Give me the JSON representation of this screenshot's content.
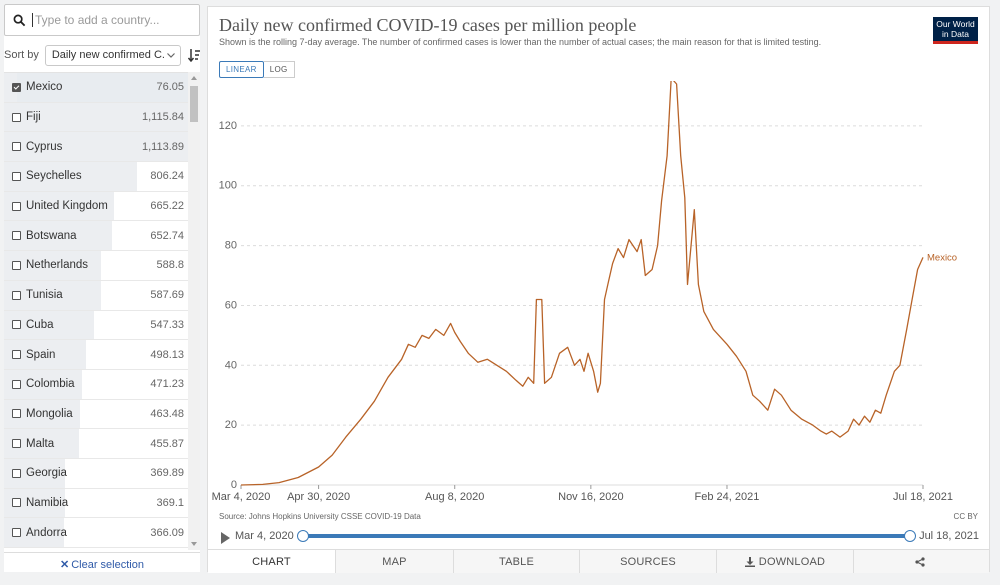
{
  "sidebar": {
    "search_placeholder": "Type to add a country...",
    "sort_label": "Sort by",
    "sort_value": "Daily new confirmed C...",
    "clear_selection": "Clear selection",
    "countries": [
      {
        "name": "Mexico",
        "value": "76.05",
        "num": 76.05,
        "selected": true
      },
      {
        "name": "Fiji",
        "value": "1,115.84",
        "num": 1115.84,
        "selected": false
      },
      {
        "name": "Cyprus",
        "value": "1,113.89",
        "num": 1113.89,
        "selected": false
      },
      {
        "name": "Seychelles",
        "value": "806.24",
        "num": 806.24,
        "selected": false
      },
      {
        "name": "United Kingdom",
        "value": "665.22",
        "num": 665.22,
        "selected": false
      },
      {
        "name": "Botswana",
        "value": "652.74",
        "num": 652.74,
        "selected": false
      },
      {
        "name": "Netherlands",
        "value": "588.8",
        "num": 588.8,
        "selected": false
      },
      {
        "name": "Tunisia",
        "value": "587.69",
        "num": 587.69,
        "selected": false
      },
      {
        "name": "Cuba",
        "value": "547.33",
        "num": 547.33,
        "selected": false
      },
      {
        "name": "Spain",
        "value": "498.13",
        "num": 498.13,
        "selected": false
      },
      {
        "name": "Colombia",
        "value": "471.23",
        "num": 471.23,
        "selected": false
      },
      {
        "name": "Mongolia",
        "value": "463.48",
        "num": 463.48,
        "selected": false
      },
      {
        "name": "Malta",
        "value": "455.87",
        "num": 455.87,
        "selected": false
      },
      {
        "name": "Georgia",
        "value": "369.89",
        "num": 369.89,
        "selected": false
      },
      {
        "name": "Namibia",
        "value": "369.1",
        "num": 369.1,
        "selected": false
      },
      {
        "name": "Andorra",
        "value": "366.09",
        "num": 366.09,
        "selected": false
      }
    ]
  },
  "chart": {
    "title": "Daily new confirmed COVID-19 cases per million people",
    "subtitle": "Shown is the rolling 7-day average. The number of confirmed cases is lower than the number of actual cases; the main reason for that is limited testing.",
    "logo_line1": "Our World",
    "logo_line2": "in Data",
    "scale_linear": "LINEAR",
    "scale_log": "LOG",
    "source": "Source: Johns Hopkins University CSSE COVID-19 Data",
    "license": "CC BY",
    "timeline_start": "Mar 4, 2020",
    "timeline_end": "Jul 18, 2021"
  },
  "tabs": [
    {
      "label": "CHART",
      "active": true
    },
    {
      "label": "MAP",
      "active": false
    },
    {
      "label": "TABLE",
      "active": false
    },
    {
      "label": "SOURCES",
      "active": false
    },
    {
      "label": "DOWNLOAD",
      "active": false
    },
    {
      "label": "",
      "active": false
    }
  ],
  "colors": {
    "series": "#b86328",
    "accent": "#3b7ab8"
  },
  "chart_data": {
    "type": "line",
    "title": "Daily new confirmed COVID-19 cases per million people",
    "xlabel": "",
    "ylabel": "",
    "x_ticks": [
      "Mar 4, 2020",
      "Apr 30, 2020",
      "Aug 8, 2020",
      "Nov 16, 2020",
      "Feb 24, 2021",
      "Jul 18, 2021"
    ],
    "y_ticks": [
      0,
      20,
      40,
      60,
      80,
      100,
      120
    ],
    "ylim": [
      0,
      135
    ],
    "grid": "horizontal",
    "series": [
      {
        "name": "Mexico",
        "color": "#b86328",
        "points": [
          [
            "2020-03-04",
            0
          ],
          [
            "2020-03-20",
            0.2
          ],
          [
            "2020-04-01",
            0.8
          ],
          [
            "2020-04-15",
            2.5
          ],
          [
            "2020-04-30",
            6
          ],
          [
            "2020-05-10",
            10
          ],
          [
            "2020-05-20",
            16
          ],
          [
            "2020-05-31",
            22
          ],
          [
            "2020-06-10",
            28
          ],
          [
            "2020-06-20",
            36
          ],
          [
            "2020-06-30",
            42
          ],
          [
            "2020-07-05",
            47
          ],
          [
            "2020-07-10",
            46
          ],
          [
            "2020-07-15",
            50
          ],
          [
            "2020-07-20",
            49
          ],
          [
            "2020-07-25",
            52
          ],
          [
            "2020-07-31",
            50
          ],
          [
            "2020-08-05",
            54
          ],
          [
            "2020-08-08",
            51
          ],
          [
            "2020-08-12",
            48
          ],
          [
            "2020-08-18",
            44
          ],
          [
            "2020-08-25",
            41
          ],
          [
            "2020-09-01",
            42
          ],
          [
            "2020-09-08",
            40
          ],
          [
            "2020-09-15",
            38
          ],
          [
            "2020-09-22",
            35
          ],
          [
            "2020-09-27",
            33
          ],
          [
            "2020-10-01",
            36
          ],
          [
            "2020-10-05",
            34
          ],
          [
            "2020-10-07",
            62
          ],
          [
            "2020-10-11",
            62
          ],
          [
            "2020-10-13",
            34
          ],
          [
            "2020-10-18",
            36
          ],
          [
            "2020-10-24",
            44
          ],
          [
            "2020-10-30",
            46
          ],
          [
            "2020-11-04",
            40
          ],
          [
            "2020-11-08",
            42
          ],
          [
            "2020-11-11",
            38
          ],
          [
            "2020-11-14",
            44
          ],
          [
            "2020-11-18",
            38
          ],
          [
            "2020-11-21",
            31
          ],
          [
            "2020-11-23",
            34
          ],
          [
            "2020-11-26",
            62
          ],
          [
            "2020-11-29",
            68
          ],
          [
            "2020-12-02",
            74
          ],
          [
            "2020-12-06",
            79
          ],
          [
            "2020-12-10",
            76
          ],
          [
            "2020-12-14",
            82
          ],
          [
            "2020-12-17",
            80
          ],
          [
            "2020-12-20",
            78
          ],
          [
            "2020-12-23",
            82
          ],
          [
            "2020-12-26",
            70
          ],
          [
            "2020-12-31",
            72
          ],
          [
            "2021-01-04",
            80
          ],
          [
            "2021-01-07",
            95
          ],
          [
            "2021-01-11",
            110
          ],
          [
            "2021-01-14",
            136
          ],
          [
            "2021-01-18",
            134
          ],
          [
            "2021-01-21",
            110
          ],
          [
            "2021-01-24",
            96
          ],
          [
            "2021-01-26",
            67
          ],
          [
            "2021-01-29",
            82
          ],
          [
            "2021-01-31",
            92
          ],
          [
            "2021-02-03",
            67
          ],
          [
            "2021-02-07",
            58
          ],
          [
            "2021-02-14",
            52
          ],
          [
            "2021-02-24",
            47
          ],
          [
            "2021-03-03",
            43
          ],
          [
            "2021-03-10",
            38
          ],
          [
            "2021-03-15",
            30
          ],
          [
            "2021-03-20",
            28
          ],
          [
            "2021-03-26",
            25
          ],
          [
            "2021-03-31",
            32
          ],
          [
            "2021-04-05",
            30
          ],
          [
            "2021-04-12",
            25
          ],
          [
            "2021-04-20",
            22
          ],
          [
            "2021-04-28",
            20
          ],
          [
            "2021-05-04",
            18
          ],
          [
            "2021-05-08",
            17
          ],
          [
            "2021-05-12",
            18
          ],
          [
            "2021-05-18",
            16
          ],
          [
            "2021-05-24",
            18
          ],
          [
            "2021-05-28",
            22
          ],
          [
            "2021-06-01",
            20
          ],
          [
            "2021-06-05",
            23
          ],
          [
            "2021-06-09",
            21
          ],
          [
            "2021-06-13",
            25
          ],
          [
            "2021-06-17",
            24
          ],
          [
            "2021-06-21",
            30
          ],
          [
            "2021-06-27",
            38
          ],
          [
            "2021-07-01",
            40
          ],
          [
            "2021-07-06",
            52
          ],
          [
            "2021-07-10",
            62
          ],
          [
            "2021-07-14",
            72
          ],
          [
            "2021-07-18",
            76.05
          ]
        ]
      }
    ]
  }
}
